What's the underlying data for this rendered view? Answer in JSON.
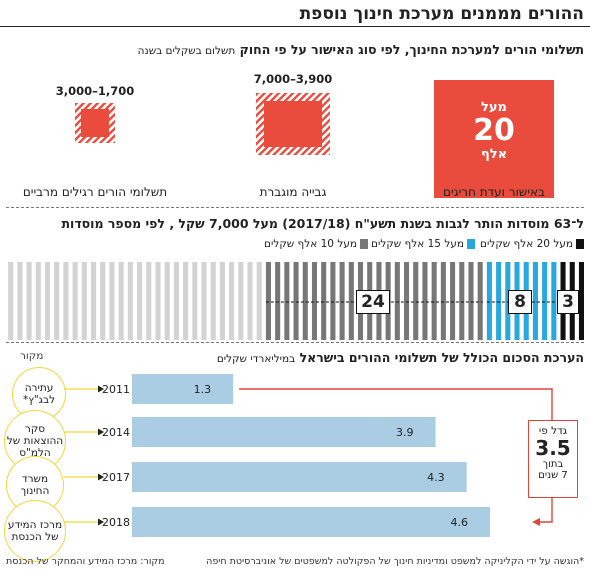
{
  "title": "ההורים מממנים מערכת חינוך נוספת",
  "section1": {
    "title": "תשלומי הורים למערכת החינוך, לפי סוג האישור על פי החוק",
    "unit": "תשלום בשקלים בשנה",
    "categories": [
      {
        "label": "באישור ועדת חריגים",
        "box_top": "מעל",
        "box_value": "20",
        "box_bottom": "אלף"
      },
      {
        "label": "גבייה מוגברת",
        "range": "7,000–3,900"
      },
      {
        "label": "תשלומי הורים רגילים מרביים",
        "range": "3,000–1,700"
      }
    ]
  },
  "section2": {
    "title": "ל־63 מוסדות הותר לגבות בשנת תשע\"ח (2017/18) מעל 7,000 שקל , לפי מספר מוסדות",
    "legend": [
      {
        "label": "מעל 20 אלף שקלים",
        "color": "#111111"
      },
      {
        "label": "מעל 15 אלף שקלים",
        "color": "#29a8e0"
      },
      {
        "label": "מעל 10 אלף שקלים",
        "color": "#777777"
      }
    ],
    "counts": [
      "3",
      "8",
      "24"
    ]
  },
  "section3": {
    "title": "הערכת הסכום הכולל של תשלומי ההורים בישראל",
    "unit": "במיליארדי שקלים",
    "source_header": "מקור",
    "sources": [
      "עתירה לבג\"ץ*",
      "סקר ההוצאות של הלמ\"ס",
      "משרד החינוך",
      "מרכז המידע של הכנסת"
    ],
    "growth": {
      "line1": "גדל פי",
      "value": "3.5",
      "line2": "בתוך",
      "line3": "7 שנים"
    }
  },
  "chart_data": [
    {
      "type": "bar",
      "title": "תשלומי הורים למערכת החינוך, לפי סוג האישור על פי החוק",
      "categories": [
        "באישור ועדת חריגים",
        "גבייה מוגברת",
        "תשלומי הורים רגילים מרביים"
      ],
      "series": [
        {
          "values": [
            "מעל 20 אלף",
            "7,000–3,900",
            "3,000–1,700"
          ]
        }
      ]
    },
    {
      "type": "bar",
      "title": "ל־63 מוסדות הותר לגבות בשנת תשע\"ח (2017/18) מעל 7,000 שקל , לפי מספר מוסדות",
      "categories": [
        "מעל 20 אלף שקלים",
        "מעל 15 אלף שקלים",
        "מעל 10 אלף שקלים"
      ],
      "values": [
        3,
        8,
        24
      ],
      "total": 63
    },
    {
      "type": "bar",
      "title": "הערכת הסכום הכולל של תשלומי ההורים בישראל",
      "ylabel": "במיליארדי שקלים",
      "categories": [
        "2011",
        "2014",
        "2017",
        "2018"
      ],
      "values": [
        1.3,
        3.9,
        4.3,
        4.6
      ],
      "xlim": [
        0,
        4.6
      ]
    }
  ],
  "footer": {
    "right": "*הוגשה על ידי הקליניקה למשפט ומדיניות חינוך של הפקולטה למשפטים של אוניברסיטת חיפה",
    "left": "מקור: מרכז המידע והמחקר של הכנסת"
  },
  "colors": {
    "red": "#e94b3c",
    "blue": "#29a8e0",
    "gray": "#777777",
    "black": "#111111",
    "bar": "#aacde3",
    "arrow": "#e0453a",
    "source_ring": "#f4d63a"
  }
}
